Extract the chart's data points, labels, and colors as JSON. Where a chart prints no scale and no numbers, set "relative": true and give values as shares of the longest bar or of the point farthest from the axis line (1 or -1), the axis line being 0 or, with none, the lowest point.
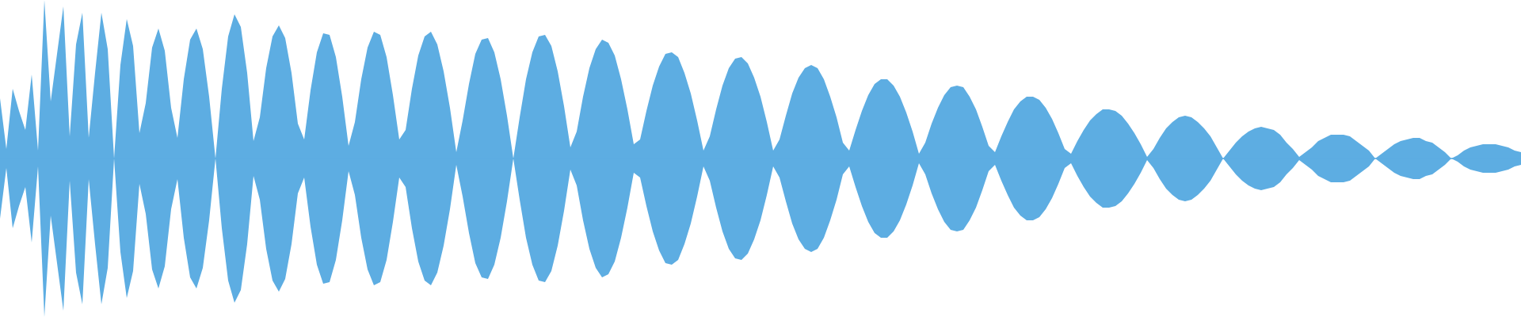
{
  "chart_data": {
    "type": "area",
    "relative": true,
    "categories": [
      null,
      null,
      null,
      null,
      null,
      null,
      null,
      null,
      null,
      null,
      null,
      null,
      null,
      null,
      null,
      null,
      null,
      null,
      null,
      null,
      null,
      null,
      null,
      null,
      null,
      null,
      null,
      null,
      null,
      null,
      null,
      null,
      null,
      null,
      null,
      null,
      null,
      null,
      null,
      null,
      null,
      null,
      null,
      null,
      null,
      null,
      null,
      null,
      null,
      null,
      null,
      null,
      null,
      null,
      null,
      null,
      null,
      null,
      null,
      null,
      null,
      null,
      null,
      null,
      null,
      null,
      null,
      null,
      null,
      null,
      null,
      null,
      null,
      null,
      null,
      null,
      null,
      null,
      null,
      null,
      null,
      null,
      null,
      null,
      null,
      null,
      null,
      null,
      null,
      null,
      null,
      null,
      null,
      null,
      null,
      null,
      null,
      null,
      null,
      null,
      null,
      null,
      null,
      null,
      null,
      null,
      null,
      null,
      null,
      null,
      null,
      null,
      null,
      null,
      null,
      null,
      null,
      null,
      null,
      null,
      null,
      null,
      null,
      null,
      null,
      null,
      null,
      null,
      null,
      null,
      null,
      null,
      null,
      null,
      null,
      null,
      null,
      null,
      null,
      null,
      null,
      null,
      null,
      null,
      null,
      null,
      null,
      null,
      null,
      null,
      null,
      null,
      null,
      null,
      null,
      null,
      null,
      null,
      null,
      null,
      null,
      null,
      null,
      null,
      null,
      null,
      null,
      null,
      null,
      null,
      null,
      null,
      null,
      null,
      null,
      null,
      null,
      null,
      null,
      null,
      null,
      null,
      null,
      null,
      null,
      null,
      null,
      null,
      null,
      null,
      null,
      null,
      null,
      null,
      null,
      null,
      null,
      null,
      null,
      null,
      null,
      null,
      null,
      null,
      null,
      null,
      null,
      null,
      null,
      null,
      null,
      null,
      null,
      null,
      null,
      null,
      null,
      null,
      null,
      null,
      null,
      null,
      null,
      null,
      null,
      null,
      null,
      null,
      null,
      null,
      null,
      null,
      null,
      null,
      null,
      null,
      null,
      null,
      null,
      null,
      null
    ],
    "series": [
      {
        "color": "#5dade2",
        "values": [
          0.38,
          0.06,
          0.44,
          0.3,
          0.18,
          0.53,
          0.05,
          1.0,
          0.36,
          0.66,
          0.96,
          0.14,
          0.72,
          0.92,
          0.13,
          0.54,
          0.92,
          0.69,
          0,
          0.59,
          0.88,
          0.71,
          0.16,
          0.35,
          0.7,
          0.82,
          0.68,
          0.32,
          0.13,
          0.5,
          0.75,
          0.82,
          0.69,
          0.39,
          0,
          0.44,
          0.77,
          0.91,
          0.83,
          0.54,
          0.11,
          0.26,
          0.57,
          0.77,
          0.84,
          0.76,
          0.54,
          0.22,
          0.12,
          0.43,
          0.67,
          0.79,
          0.78,
          0.64,
          0.39,
          0.08,
          0.23,
          0.5,
          0.7,
          0.8,
          0.78,
          0.64,
          0.4,
          0.12,
          0.18,
          0.44,
          0.65,
          0.77,
          0.8,
          0.72,
          0.55,
          0.32,
          0.04,
          0.24,
          0.47,
          0.66,
          0.75,
          0.76,
          0.67,
          0.5,
          0.27,
          0,
          0.26,
          0.5,
          0.67,
          0.77,
          0.78,
          0.71,
          0.55,
          0.33,
          0.07,
          0.17,
          0.39,
          0.57,
          0.69,
          0.75,
          0.73,
          0.65,
          0.5,
          0.31,
          0.09,
          0.12,
          0.3,
          0.46,
          0.58,
          0.66,
          0.67,
          0.64,
          0.54,
          0.41,
          0.24,
          0.05,
          0.14,
          0.31,
          0.46,
          0.57,
          0.63,
          0.64,
          0.6,
          0.51,
          0.39,
          0.23,
          0.05,
          0.12,
          0.27,
          0.41,
          0.51,
          0.57,
          0.59,
          0.57,
          0.5,
          0.39,
          0.26,
          0.1,
          0.05,
          0.18,
          0.3,
          0.4,
          0.47,
          0.5,
          0.5,
          0.46,
          0.39,
          0.29,
          0.17,
          0.03,
          0.1,
          0.22,
          0.32,
          0.4,
          0.45,
          0.46,
          0.45,
          0.39,
          0.31,
          0.2,
          0.08,
          0.04,
          0.14,
          0.23,
          0.31,
          0.36,
          0.39,
          0.39,
          0.37,
          0.32,
          0.25,
          0.16,
          0.06,
          0.03,
          0.11,
          0.18,
          0.24,
          0.28,
          0.31,
          0.31,
          0.3,
          0.27,
          0.22,
          0.16,
          0.09,
          0.01,
          0.06,
          0.13,
          0.19,
          0.23,
          0.26,
          0.27,
          0.26,
          0.23,
          0.19,
          0.14,
          0.07,
          0,
          0.05,
          0.1,
          0.14,
          0.17,
          0.19,
          0.2,
          0.19,
          0.18,
          0.15,
          0.1,
          0.06,
          0.01,
          0.04,
          0.07,
          0.11,
          0.13,
          0.15,
          0.15,
          0.15,
          0.14,
          0.11,
          0.08,
          0.05,
          0,
          0.03,
          0.06,
          0.09,
          0.11,
          0.12,
          0.13,
          0.13,
          0.11,
          0.1,
          0.07,
          0.04,
          0,
          0.02,
          0.05,
          0.07,
          0.08,
          0.09,
          0.09,
          0.09,
          0.08,
          0.07,
          0.05,
          0.04
        ]
      },
      {
        "color": "#5dade2",
        "values": [
          -0.38,
          -0.06,
          -0.44,
          -0.3,
          -0.18,
          -0.53,
          -0.05,
          -1.0,
          -0.36,
          -0.66,
          -0.96,
          -0.14,
          -0.72,
          -0.92,
          -0.13,
          -0.54,
          -0.92,
          -0.69,
          0,
          -0.59,
          -0.88,
          -0.71,
          -0.16,
          -0.35,
          -0.7,
          -0.82,
          -0.68,
          -0.32,
          -0.13,
          -0.5,
          -0.75,
          -0.82,
          -0.69,
          -0.39,
          0,
          -0.44,
          -0.77,
          -0.91,
          -0.83,
          -0.54,
          -0.11,
          -0.26,
          -0.57,
          -0.77,
          -0.84,
          -0.76,
          -0.54,
          -0.22,
          -0.12,
          -0.43,
          -0.67,
          -0.79,
          -0.78,
          -0.64,
          -0.39,
          -0.08,
          -0.23,
          -0.5,
          -0.7,
          -0.8,
          -0.78,
          -0.64,
          -0.4,
          -0.12,
          -0.18,
          -0.44,
          -0.65,
          -0.77,
          -0.8,
          -0.72,
          -0.55,
          -0.32,
          -0.04,
          -0.24,
          -0.47,
          -0.66,
          -0.75,
          -0.76,
          -0.67,
          -0.5,
          -0.27,
          0,
          -0.26,
          -0.5,
          -0.67,
          -0.77,
          -0.78,
          -0.71,
          -0.55,
          -0.33,
          -0.07,
          -0.17,
          -0.39,
          -0.57,
          -0.69,
          -0.75,
          -0.73,
          -0.65,
          -0.5,
          -0.31,
          -0.09,
          -0.12,
          -0.3,
          -0.46,
          -0.58,
          -0.66,
          -0.67,
          -0.64,
          -0.54,
          -0.41,
          -0.24,
          -0.05,
          -0.14,
          -0.31,
          -0.46,
          -0.57,
          -0.63,
          -0.64,
          -0.6,
          -0.51,
          -0.39,
          -0.23,
          -0.05,
          -0.12,
          -0.27,
          -0.41,
          -0.51,
          -0.57,
          -0.59,
          -0.57,
          -0.5,
          -0.39,
          -0.26,
          -0.1,
          -0.05,
          -0.18,
          -0.3,
          -0.4,
          -0.47,
          -0.5,
          -0.5,
          -0.46,
          -0.39,
          -0.29,
          -0.17,
          -0.03,
          -0.1,
          -0.22,
          -0.32,
          -0.4,
          -0.45,
          -0.46,
          -0.45,
          -0.39,
          -0.31,
          -0.2,
          -0.08,
          -0.04,
          -0.14,
          -0.23,
          -0.31,
          -0.36,
          -0.39,
          -0.39,
          -0.37,
          -0.32,
          -0.25,
          -0.16,
          -0.06,
          -0.03,
          -0.11,
          -0.18,
          -0.24,
          -0.28,
          -0.31,
          -0.31,
          -0.3,
          -0.27,
          -0.22,
          -0.16,
          -0.09,
          -0.01,
          -0.06,
          -0.13,
          -0.19,
          -0.23,
          -0.26,
          -0.27,
          -0.26,
          -0.23,
          -0.19,
          -0.14,
          -0.07,
          0,
          -0.05,
          -0.1,
          -0.14,
          -0.17,
          -0.19,
          -0.2,
          -0.19,
          -0.18,
          -0.15,
          -0.1,
          -0.06,
          -0.01,
          -0.04,
          -0.07,
          -0.11,
          -0.13,
          -0.15,
          -0.15,
          -0.15,
          -0.14,
          -0.11,
          -0.08,
          -0.05,
          0,
          -0.03,
          -0.06,
          -0.09,
          -0.11,
          -0.12,
          -0.13,
          -0.13,
          -0.11,
          -0.1,
          -0.07,
          -0.04,
          0,
          -0.02,
          -0.05,
          -0.07,
          -0.08,
          -0.09,
          -0.09,
          -0.09,
          -0.08,
          -0.07,
          -0.05,
          -0.04
        ]
      }
    ],
    "ref_lines": [
      {
        "axis": "y",
        "value": 0,
        "color": "#5dade2",
        "line_style": "solid"
      }
    ]
  }
}
